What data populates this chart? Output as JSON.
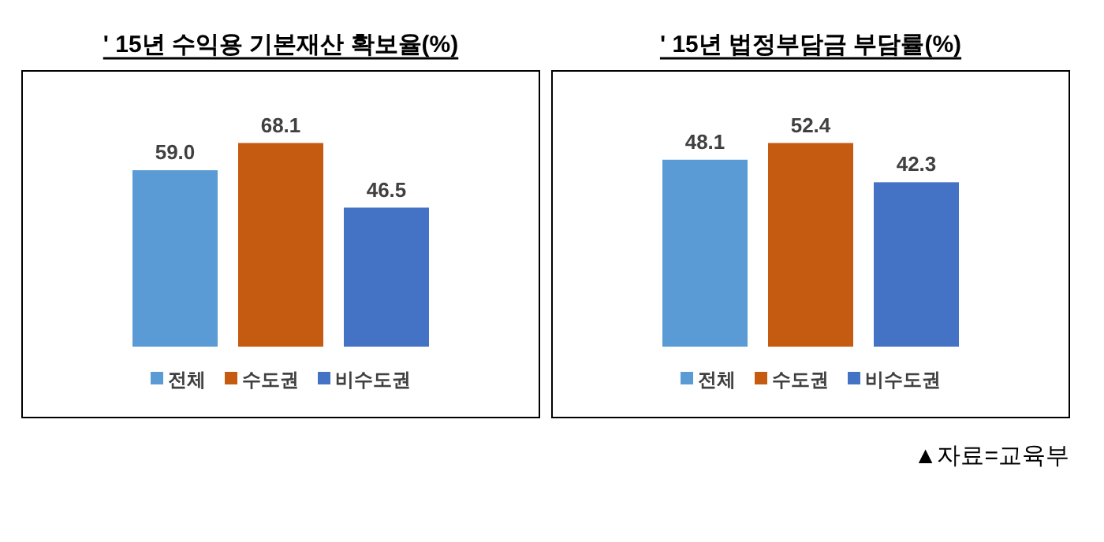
{
  "chart_data": [
    {
      "type": "bar",
      "title": "' 15년 수익용 기본재산 확보율(%)",
      "categories": [
        null
      ],
      "data_labels": true,
      "legend": "bottom",
      "series": [
        {
          "name": "전체",
          "color": "#5b9bd5",
          "values": [
            59.0
          ],
          "value_labels": [
            "59.0"
          ]
        },
        {
          "name": "수도권",
          "color": "#c55a11",
          "values": [
            68.1
          ]
        },
        {
          "name": "비수도권",
          "color": "#4472c4",
          "values": [
            46.5
          ]
        }
      ]
    },
    {
      "type": "bar",
      "title": "' 15년 법정부담금 부담률(%)",
      "categories": [
        null
      ],
      "data_labels": true,
      "legend": "bottom",
      "annotations": [
        "▲자료=교육부"
      ],
      "series": [
        {
          "name": "전체",
          "color": "#5b9bd5",
          "values": [
            48.1
          ]
        },
        {
          "name": "수도권",
          "color": "#c55a11",
          "values": [
            52.4
          ]
        },
        {
          "name": "비수도권",
          "color": "#4472c4",
          "values": [
            42.3
          ]
        }
      ]
    }
  ]
}
